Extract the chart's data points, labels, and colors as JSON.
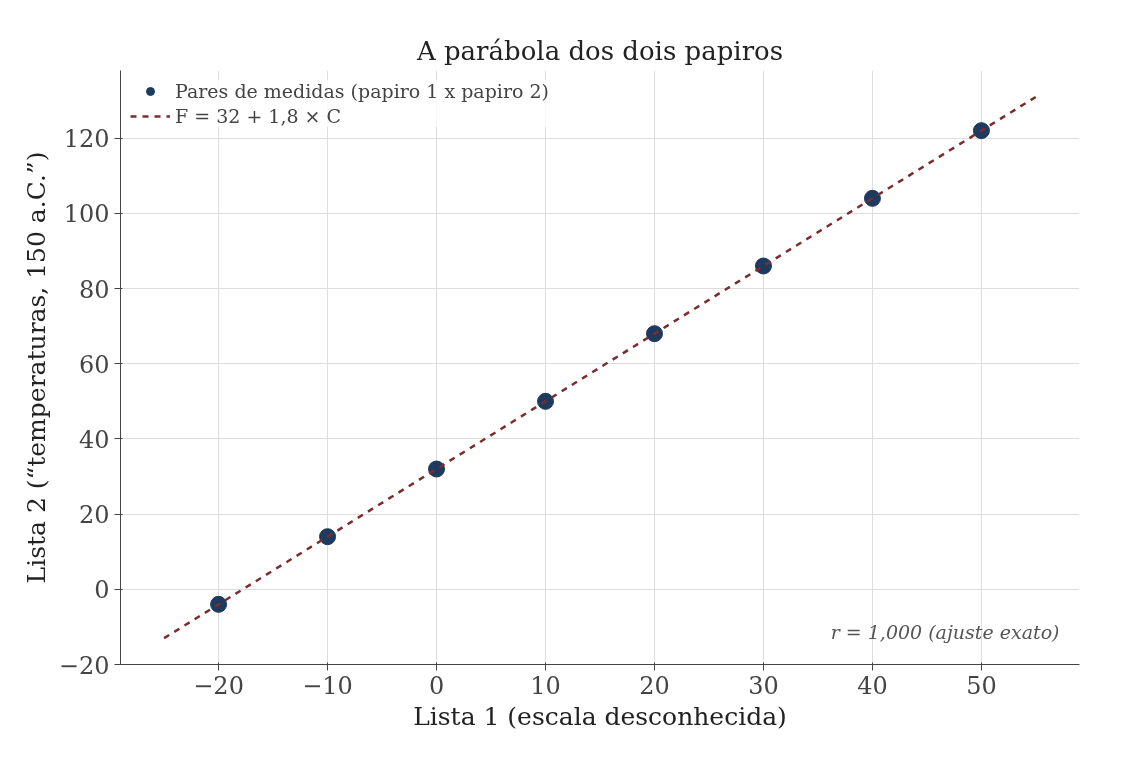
{
  "chart_data": {
    "type": "scatter",
    "title": "A parábola dos dois papiros",
    "xlabel": "Lista 1 (escala desconhecida)",
    "ylabel": "Lista 2 (“temperaturas, 150 a.C.”)",
    "x": [
      -20,
      -10,
      0,
      10,
      20,
      30,
      40,
      50
    ],
    "series": [
      {
        "name": "Pares de medidas (papiro 1 x papiro 2)",
        "color": "#1f3a5f",
        "marker": "circle",
        "values": [
          -4,
          14,
          32,
          50,
          68,
          86,
          104,
          122
        ]
      },
      {
        "name": "F = 32 + 1,8 × C",
        "type": "line",
        "color": "#7b2d2d",
        "line_style": "dashed",
        "x": [
          -25,
          55
        ],
        "values": [
          -13,
          131
        ]
      }
    ],
    "xlim": [
      -29,
      59
    ],
    "ylim": [
      -20,
      138
    ],
    "xticks": [
      {
        "value": -20,
        "label": "−20"
      },
      {
        "value": -10,
        "label": "−10"
      },
      0,
      10,
      20,
      30,
      40,
      50
    ],
    "yticks": [
      {
        "value": -20,
        "label": "−20"
      },
      0,
      20,
      40,
      60,
      80,
      100,
      120
    ],
    "grid": true,
    "legend": "top left",
    "annotations": [
      "r = 1,000 (ajuste exato)"
    ]
  }
}
